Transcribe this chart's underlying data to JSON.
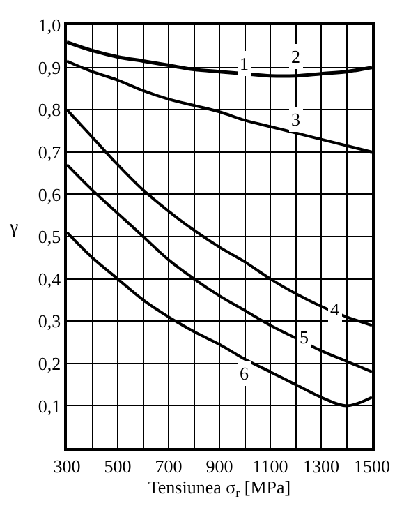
{
  "chart_data": {
    "type": "line",
    "xlabel": "Tensiunea σ$_{r}$ [MPa]",
    "ylabel": "γ",
    "x": [
      300,
      400,
      500,
      600,
      700,
      800,
      900,
      1000,
      1100,
      1200,
      1300,
      1400,
      1500
    ],
    "series": [
      {
        "name": "2",
        "color": "#000000",
        "values": [
          0.96,
          0.94,
          0.925,
          0.915,
          0.905,
          0.895,
          0.89,
          0.885,
          0.88,
          0.88,
          0.885,
          0.89,
          0.9
        ]
      },
      {
        "name": "3",
        "color": "#000000",
        "values": [
          0.915,
          0.89,
          0.87,
          0.845,
          0.825,
          0.81,
          0.795,
          0.775,
          0.76,
          0.745,
          0.73,
          0.715,
          0.7
        ]
      },
      {
        "name": "4",
        "color": "#000000",
        "values": [
          0.8,
          0.735,
          0.67,
          0.61,
          0.56,
          0.515,
          0.475,
          0.44,
          0.4,
          0.365,
          0.335,
          0.31,
          0.29
        ]
      },
      {
        "name": "5",
        "color": "#000000",
        "values": [
          0.67,
          0.61,
          0.555,
          0.5,
          0.445,
          0.4,
          0.36,
          0.325,
          0.29,
          0.26,
          0.23,
          0.205,
          0.18
        ]
      },
      {
        "name": "6",
        "color": "#000000",
        "values": [
          0.51,
          0.45,
          0.4,
          0.35,
          0.31,
          0.275,
          0.245,
          0.21,
          0.18,
          0.15,
          0.12,
          0.1,
          0.12
        ]
      }
    ],
    "xlim": [
      300,
      1500
    ],
    "xticks": [
      300,
      {
        "value": 400,
        "label": null
      },
      500,
      {
        "value": 600,
        "label": null
      },
      700,
      {
        "value": 800,
        "label": null
      },
      900,
      {
        "value": 1000,
        "label": null
      },
      1100,
      {
        "value": 1200,
        "label": null
      },
      1300,
      {
        "value": 1400,
        "label": null
      },
      1500
    ],
    "ylim": [
      0,
      1
    ],
    "yticks": [
      {
        "value": 0.1,
        "label": "0,1"
      },
      {
        "value": 0.2,
        "label": "0,2"
      },
      {
        "value": 0.3,
        "label": "0,3"
      },
      {
        "value": 0.4,
        "label": "0,4"
      },
      {
        "value": 0.5,
        "label": "0,5"
      },
      {
        "value": 0.6,
        "label": "0,6"
      },
      {
        "value": 0.7,
        "label": "0,7"
      },
      {
        "value": 0.8,
        "label": "0,8"
      },
      {
        "value": 0.9,
        "label": "0,9"
      },
      {
        "value": 1.0,
        "label": "1,0"
      }
    ],
    "grid": true,
    "annotations": [
      "1"
    ]
  }
}
